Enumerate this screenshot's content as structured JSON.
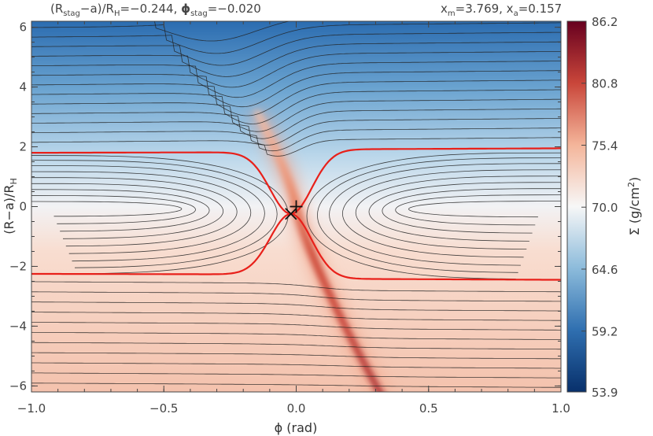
{
  "header": {
    "left_parts": [
      "(R",
      "stag",
      "−a)/R",
      "H",
      "=−0.244, ",
      "ϕ",
      "stag",
      "=−0.020"
    ],
    "right_parts": [
      "x",
      "m",
      "=3.769, x",
      "a",
      "=0.157"
    ]
  },
  "chart_data": {
    "type": "heatmap",
    "xlabel": "ϕ (rad)",
    "ylabel_parts": [
      "(R−a)/R",
      "H"
    ],
    "xlim": [
      -1.0,
      1.0
    ],
    "ylim": [
      -6.2,
      6.2
    ],
    "x_ticks": [
      -1.0,
      -0.5,
      0.0,
      0.5,
      1.0
    ],
    "x_tick_labels": [
      "−1.0",
      "−0.5",
      "0.0",
      "0.5",
      "1.0"
    ],
    "y_ticks": [
      -6,
      -4,
      -2,
      0,
      2,
      4,
      6
    ],
    "y_tick_labels": [
      "−6",
      "−4",
      "−2",
      "0",
      "2",
      "4",
      "6"
    ],
    "colorbar": {
      "label_parts": [
        "Σ (g/cm",
        "2",
        ")"
      ],
      "range": [
        53.9,
        86.2
      ],
      "ticks": [
        53.9,
        59.2,
        64.6,
        70.0,
        75.4,
        80.8,
        86.2
      ],
      "tick_labels": [
        "53.9",
        "59.2",
        "64.6",
        "70.0",
        "75.4",
        "80.8",
        "86.2"
      ],
      "colors": [
        "#08306b",
        "#2f6fb0",
        "#8cbbdb",
        "#f7f7f7",
        "#f4b59a",
        "#c9463a",
        "#67001f"
      ]
    },
    "stagnation_point": {
      "x": -0.02,
      "y": -0.244
    },
    "planet_marker": {
      "x": 0.0,
      "y": 0.0
    },
    "separatrix_upper_outer": [
      -1.0,
      1.8,
      1.0,
      1.95
    ],
    "separatrix_lower_outer": [
      -1.0,
      -2.25,
      1.0,
      -2.45
    ],
    "streamline_color": "#222222",
    "separatrix_color": "#e8201a"
  }
}
